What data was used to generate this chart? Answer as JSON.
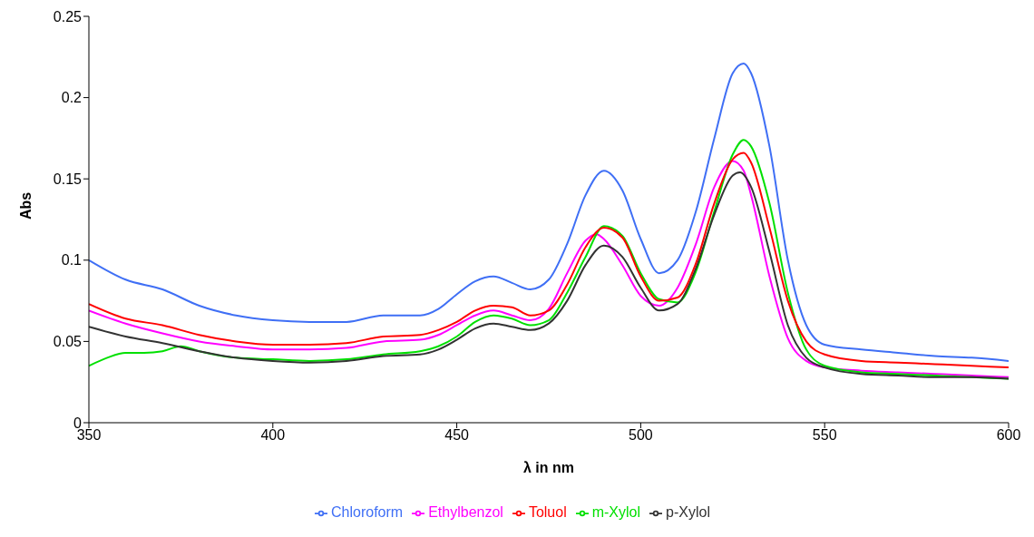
{
  "chart_data": {
    "type": "line",
    "xlabel": "λ in nm",
    "ylabel": "Abs",
    "xlim": [
      350,
      600
    ],
    "xticks": [
      350,
      400,
      450,
      500,
      550,
      600
    ],
    "ylim": [
      0,
      0.25
    ],
    "yticks": [
      0,
      0.05,
      0.1,
      0.15,
      0.2,
      0.25
    ],
    "grid": false,
    "legend": "bottom",
    "marker": "none",
    "line_style": "solid",
    "series": [
      {
        "name": "Chloroform",
        "color": "#3f6ff5",
        "x": [
          350,
          360,
          370,
          380,
          390,
          400,
          410,
          420,
          430,
          440,
          445,
          450,
          455,
          460,
          465,
          470,
          475,
          480,
          485,
          490,
          495,
          500,
          505,
          510,
          515,
          520,
          525,
          528,
          530,
          535,
          540,
          545,
          550,
          560,
          570,
          580,
          590,
          600
        ],
        "values": [
          0.1,
          0.088,
          0.082,
          0.072,
          0.066,
          0.063,
          0.062,
          0.062,
          0.066,
          0.066,
          0.07,
          0.079,
          0.087,
          0.09,
          0.086,
          0.082,
          0.088,
          0.11,
          0.14,
          0.155,
          0.143,
          0.113,
          0.092,
          0.1,
          0.13,
          0.175,
          0.215,
          0.221,
          0.215,
          0.17,
          0.1,
          0.06,
          0.048,
          0.045,
          0.043,
          0.041,
          0.04,
          0.038
        ]
      },
      {
        "name": "Ethylbenzol",
        "color": "#ff00ff",
        "x": [
          350,
          360,
          370,
          380,
          390,
          400,
          410,
          420,
          430,
          440,
          445,
          450,
          455,
          460,
          465,
          470,
          475,
          480,
          485,
          488,
          490,
          495,
          500,
          505,
          510,
          515,
          520,
          525,
          528,
          530,
          535,
          540,
          545,
          550,
          560,
          570,
          580,
          590,
          600
        ],
        "values": [
          0.069,
          0.061,
          0.055,
          0.05,
          0.047,
          0.045,
          0.045,
          0.046,
          0.05,
          0.051,
          0.054,
          0.06,
          0.066,
          0.069,
          0.066,
          0.063,
          0.07,
          0.092,
          0.112,
          0.116,
          0.113,
          0.097,
          0.078,
          0.072,
          0.083,
          0.11,
          0.145,
          0.161,
          0.155,
          0.14,
          0.09,
          0.052,
          0.038,
          0.034,
          0.032,
          0.031,
          0.03,
          0.029,
          0.028
        ]
      },
      {
        "name": "m-Xylol",
        "color": "#00e000",
        "x": [
          350,
          355,
          360,
          365,
          370,
          375,
          380,
          390,
          400,
          410,
          420,
          430,
          440,
          445,
          450,
          455,
          460,
          465,
          470,
          475,
          480,
          485,
          490,
          495,
          500,
          505,
          510,
          515,
          520,
          525,
          528,
          530,
          535,
          540,
          545,
          550,
          560,
          570,
          580,
          590,
          600
        ],
        "values": [
          0.035,
          0.04,
          0.043,
          0.043,
          0.044,
          0.047,
          0.044,
          0.04,
          0.039,
          0.038,
          0.039,
          0.042,
          0.044,
          0.047,
          0.053,
          0.062,
          0.066,
          0.064,
          0.06,
          0.063,
          0.08,
          0.102,
          0.121,
          0.115,
          0.092,
          0.076,
          0.074,
          0.093,
          0.13,
          0.165,
          0.174,
          0.17,
          0.135,
          0.08,
          0.045,
          0.035,
          0.031,
          0.03,
          0.029,
          0.028,
          0.027
        ]
      },
      {
        "name": "p-Xylol",
        "color": "#333333",
        "x": [
          350,
          360,
          370,
          380,
          390,
          400,
          410,
          420,
          430,
          440,
          445,
          450,
          455,
          460,
          465,
          470,
          475,
          480,
          485,
          490,
          495,
          500,
          505,
          510,
          515,
          520,
          525,
          527,
          530,
          535,
          540,
          545,
          550,
          560,
          570,
          580,
          590,
          600
        ],
        "values": [
          0.059,
          0.053,
          0.049,
          0.044,
          0.04,
          0.038,
          0.037,
          0.038,
          0.041,
          0.042,
          0.045,
          0.051,
          0.058,
          0.061,
          0.059,
          0.057,
          0.061,
          0.075,
          0.097,
          0.109,
          0.102,
          0.083,
          0.069,
          0.073,
          0.095,
          0.128,
          0.152,
          0.154,
          0.145,
          0.105,
          0.06,
          0.04,
          0.034,
          0.03,
          0.029,
          0.028,
          0.028,
          0.027
        ]
      },
      {
        "name": "Toluol",
        "color": "#ff0000",
        "x": [
          350,
          360,
          370,
          380,
          390,
          400,
          410,
          420,
          430,
          440,
          445,
          450,
          455,
          460,
          465,
          470,
          475,
          480,
          485,
          490,
          495,
          500,
          505,
          510,
          515,
          520,
          525,
          528,
          530,
          535,
          540,
          545,
          550,
          560,
          570,
          580,
          590,
          600
        ],
        "values": [
          0.073,
          0.064,
          0.06,
          0.054,
          0.05,
          0.048,
          0.048,
          0.049,
          0.053,
          0.054,
          0.057,
          0.062,
          0.069,
          0.072,
          0.071,
          0.066,
          0.069,
          0.085,
          0.108,
          0.12,
          0.114,
          0.09,
          0.075,
          0.077,
          0.098,
          0.135,
          0.162,
          0.166,
          0.16,
          0.12,
          0.075,
          0.05,
          0.042,
          0.038,
          0.037,
          0.036,
          0.035,
          0.034
        ]
      }
    ]
  }
}
